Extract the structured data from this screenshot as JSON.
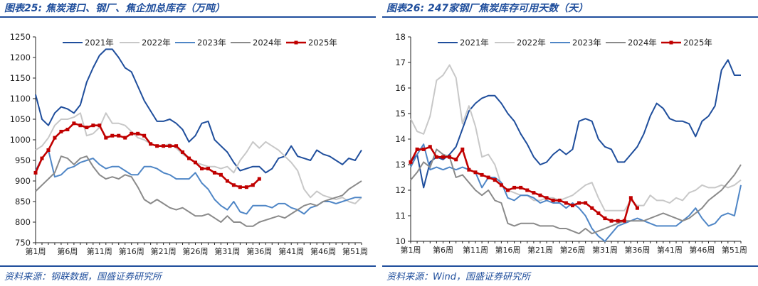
{
  "left": {
    "title": "图表25: 焦炭港口、钢厂、焦企加总库存（万吨）",
    "source": "资料来源：钢联数据，国盛证券研究所"
  },
  "right": {
    "title": "图表26: 247家钢厂焦炭库存可用天数（天）",
    "source": "资料来源：Wind，国盛证券研究所"
  },
  "colors": {
    "y2021": "#1f4e9c",
    "y2022": "#c8c8c8",
    "y2023": "#4f86c6",
    "y2024": "#8a8a8a",
    "y2025": "#c00000",
    "rule": "#1f4e9c"
  },
  "chart_data": [
    {
      "type": "line",
      "xlabel": "",
      "ylabel": "",
      "x_ticks": [
        "第1周",
        "第6周",
        "第11周",
        "第16周",
        "第21周",
        "第26周",
        "第31周",
        "第36周",
        "第41周",
        "第46周",
        "第51周"
      ],
      "x_range": [
        1,
        52
      ],
      "ylim": [
        750,
        1250
      ],
      "y_ticks": [
        750,
        800,
        850,
        900,
        950,
        1000,
        1050,
        1100,
        1150,
        1200,
        1250
      ],
      "legend_position": "top",
      "series": [
        {
          "name": "2021年",
          "key": "y2021",
          "marker": false,
          "values": [
            1110,
            1050,
            1035,
            1065,
            1080,
            1075,
            1065,
            1085,
            1140,
            1175,
            1205,
            1220,
            1220,
            1200,
            1175,
            1165,
            1130,
            1095,
            1070,
            1045,
            1045,
            1050,
            1040,
            1025,
            995,
            1010,
            1040,
            1045,
            1000,
            985,
            970,
            945,
            925,
            930,
            935,
            935,
            920,
            930,
            955,
            960,
            985,
            960,
            955,
            950,
            975,
            965,
            960,
            950,
            940,
            955,
            950,
            975
          ]
        },
        {
          "name": "2022年",
          "key": "y2022",
          "marker": false,
          "values": [
            975,
            985,
            1005,
            1035,
            1050,
            1050,
            1055,
            1065,
            1010,
            1015,
            1030,
            1065,
            1040,
            1040,
            1035,
            1020,
            1005,
            1000,
            990,
            985,
            985,
            990,
            980,
            965,
            955,
            945,
            940,
            935,
            935,
            930,
            935,
            920,
            950,
            970,
            995,
            980,
            995,
            985,
            975,
            960,
            945,
            925,
            880,
            860,
            875,
            865,
            860,
            855,
            860,
            850,
            845,
            860
          ]
        },
        {
          "name": "2023年",
          "key": "y2023",
          "marker": false,
          "values": [
            925,
            955,
            975,
            910,
            915,
            930,
            935,
            945,
            950,
            955,
            940,
            930,
            935,
            935,
            925,
            915,
            915,
            935,
            935,
            930,
            920,
            915,
            905,
            905,
            905,
            920,
            895,
            880,
            855,
            840,
            830,
            850,
            825,
            820,
            840,
            840,
            840,
            835,
            845,
            845,
            835,
            830,
            820,
            835,
            840,
            850,
            850,
            845,
            850,
            855,
            860,
            860
          ]
        },
        {
          "name": "2024年",
          "key": "y2024",
          "marker": false,
          "values": [
            875,
            890,
            905,
            920,
            960,
            955,
            940,
            955,
            960,
            935,
            915,
            905,
            910,
            905,
            915,
            910,
            885,
            855,
            845,
            855,
            845,
            835,
            830,
            835,
            825,
            815,
            815,
            820,
            810,
            800,
            815,
            800,
            800,
            790,
            790,
            800,
            805,
            810,
            815,
            810,
            820,
            830,
            840,
            845,
            840,
            850,
            855,
            860,
            865,
            880,
            890,
            900
          ]
        },
        {
          "name": "2025年",
          "key": "y2025",
          "marker": true,
          "values": [
            920,
            955,
            975,
            1005,
            1020,
            1025,
            1040,
            1035,
            1030,
            1035,
            1035,
            1005,
            1010,
            1010,
            1005,
            1015,
            1015,
            1010,
            990,
            985,
            985,
            985,
            985,
            970,
            955,
            945,
            930,
            930,
            920,
            915,
            900,
            890,
            885,
            885,
            890,
            905
          ]
        }
      ]
    },
    {
      "type": "line",
      "xlabel": "",
      "ylabel": "",
      "x_ticks": [
        "第1周",
        "第6周",
        "第11周",
        "第16周",
        "第21周",
        "第26周",
        "第31周",
        "第36周",
        "第41周",
        "第46周",
        "第51周"
      ],
      "x_range": [
        1,
        52
      ],
      "ylim": [
        10,
        18
      ],
      "y_ticks": [
        10,
        11,
        12,
        13,
        14,
        15,
        16,
        17,
        18
      ],
      "legend_position": "top",
      "series": [
        {
          "name": "2021年",
          "key": "y2021",
          "marker": false,
          "values": [
            13.1,
            13.4,
            12.1,
            13.1,
            13.3,
            13.2,
            13.4,
            13.7,
            14.4,
            15.1,
            15.4,
            15.6,
            15.7,
            15.7,
            15.4,
            15.0,
            14.7,
            14.2,
            13.8,
            13.3,
            13.0,
            13.1,
            13.4,
            13.6,
            13.4,
            13.6,
            14.7,
            14.8,
            14.7,
            14.0,
            13.7,
            13.6,
            13.1,
            13.1,
            13.4,
            13.7,
            14.2,
            14.9,
            15.4,
            15.2,
            14.8,
            14.7,
            14.7,
            14.6,
            14.1,
            14.7,
            14.9,
            15.3,
            16.7,
            17.1,
            16.5,
            16.5
          ]
        },
        {
          "name": "2022年",
          "key": "y2022",
          "marker": false,
          "values": [
            14.8,
            14.3,
            14.2,
            14.9,
            16.3,
            16.5,
            16.9,
            16.4,
            14.6,
            15.3,
            14.5,
            13.3,
            13.4,
            13.0,
            12.2,
            12.0,
            11.9,
            11.8,
            11.8,
            11.6,
            11.6,
            11.7,
            11.7,
            11.6,
            11.7,
            11.8,
            12.0,
            12.2,
            12.3,
            11.7,
            11.2,
            11.2,
            11.2,
            11.2,
            11.6,
            11.4,
            11.4,
            11.8,
            11.6,
            11.6,
            11.5,
            11.7,
            11.6,
            11.9,
            12.0,
            12.2,
            12.1,
            12.1,
            12.2,
            12.1,
            12.2,
            12.4
          ]
        },
        {
          "name": "2023年",
          "key": "y2023",
          "marker": false,
          "values": [
            12.9,
            13.4,
            13.8,
            12.8,
            12.9,
            12.8,
            12.9,
            12.8,
            12.9,
            12.8,
            12.7,
            12.1,
            12.5,
            12.5,
            12.3,
            11.7,
            11.6,
            11.8,
            11.8,
            11.7,
            11.5,
            11.6,
            11.5,
            11.5,
            11.3,
            11.5,
            11.3,
            11.0,
            10.5,
            10.2,
            10.0,
            10.3,
            10.6,
            10.7,
            10.8,
            10.9,
            10.8,
            10.7,
            10.6,
            10.6,
            10.6,
            10.6,
            10.8,
            11.0,
            11.3,
            10.9,
            10.6,
            10.7,
            11.0,
            11.1,
            11.0,
            12.2
          ]
        },
        {
          "name": "2024年",
          "key": "y2024",
          "marker": false,
          "values": [
            12.4,
            12.7,
            13.1,
            12.9,
            13.6,
            13.4,
            13.3,
            12.5,
            12.6,
            12.3,
            12.0,
            11.8,
            12.0,
            11.6,
            11.5,
            10.7,
            10.6,
            10.7,
            10.7,
            10.7,
            10.6,
            10.6,
            10.6,
            10.5,
            10.5,
            10.4,
            10.3,
            10.5,
            10.3,
            10.4,
            10.5,
            10.6,
            10.7,
            10.8,
            10.8,
            10.8,
            10.8,
            10.9,
            11.0,
            11.1,
            11.0,
            10.9,
            10.8,
            10.9,
            11.1,
            11.3,
            11.6,
            11.8,
            12.0,
            12.3,
            12.6,
            13.0
          ]
        },
        {
          "name": "2025年",
          "key": "y2025",
          "marker": true,
          "values": [
            13.1,
            13.6,
            13.6,
            13.7,
            13.3,
            13.3,
            13.3,
            13.2,
            13.6,
            12.8,
            12.7,
            12.6,
            12.5,
            12.4,
            12.2,
            12.0,
            12.1,
            12.1,
            12.0,
            11.9,
            11.8,
            11.7,
            11.6,
            11.6,
            11.5,
            11.4,
            11.5,
            11.5,
            11.3,
            11.1,
            10.9,
            10.8,
            10.8,
            10.8,
            11.7,
            11.3
          ]
        }
      ]
    }
  ]
}
